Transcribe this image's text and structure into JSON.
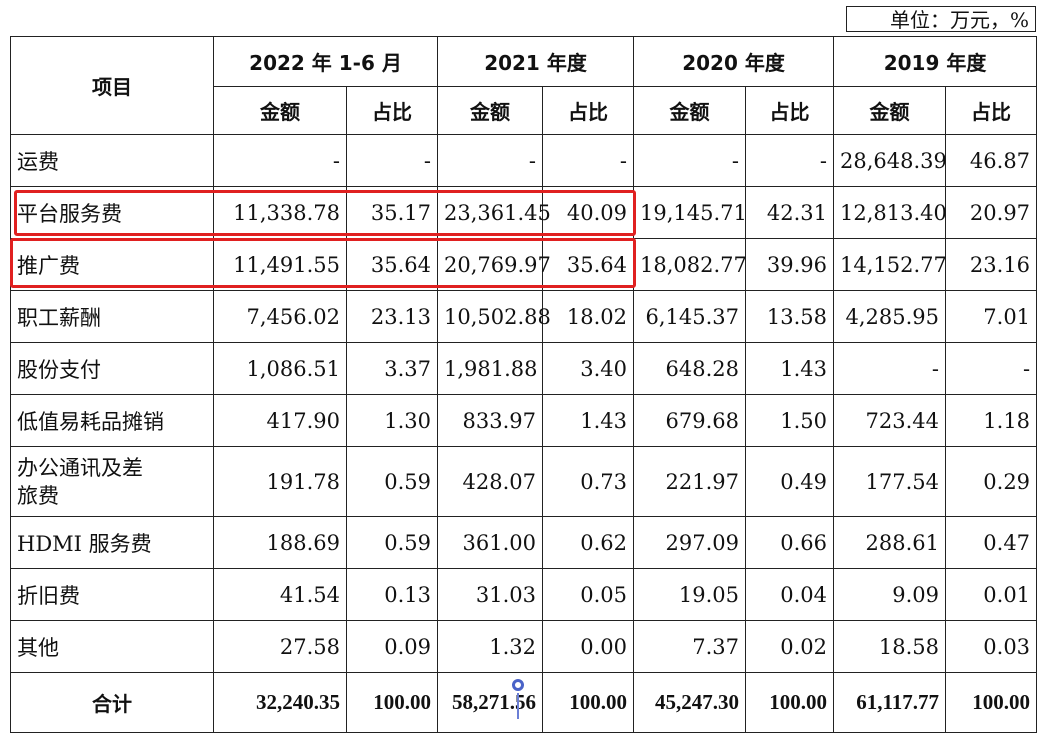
{
  "unit_label": "单位：万元，%",
  "header": {
    "item": "项目",
    "periods": [
      "2022 年 1-6 月",
      "2021 年度",
      "2020 年度",
      "2019 年度"
    ],
    "amount": "金额",
    "ratio": "占比"
  },
  "rows": [
    {
      "label": "运费",
      "v": [
        "-",
        "-",
        "-",
        "-",
        "-",
        "-",
        "28,648.39",
        "46.87"
      ]
    },
    {
      "label": "平台服务费",
      "v": [
        "11,338.78",
        "35.17",
        "23,361.45",
        "40.09",
        "19,145.71",
        "42.31",
        "12,813.40",
        "20.97"
      ]
    },
    {
      "label": "推广费",
      "v": [
        "11,491.55",
        "35.64",
        "20,769.97",
        "35.64",
        "18,082.77",
        "39.96",
        "14,152.77",
        "23.16"
      ]
    },
    {
      "label": "职工薪酬",
      "v": [
        "7,456.02",
        "23.13",
        "10,502.88",
        "18.02",
        "6,145.37",
        "13.58",
        "4,285.95",
        "7.01"
      ]
    },
    {
      "label": "股份支付",
      "v": [
        "1,086.51",
        "3.37",
        "1,981.88",
        "3.40",
        "648.28",
        "1.43",
        "-",
        "-"
      ]
    },
    {
      "label": "低值易耗品摊销",
      "v": [
        "417.90",
        "1.30",
        "833.97",
        "1.43",
        "679.68",
        "1.50",
        "723.44",
        "1.18"
      ]
    },
    {
      "label": "办公通讯及差旅费",
      "v": [
        "191.78",
        "0.59",
        "428.07",
        "0.73",
        "221.97",
        "0.49",
        "177.54",
        "0.29"
      ]
    },
    {
      "label": "HDMI 服务费",
      "v": [
        "188.69",
        "0.59",
        "361.00",
        "0.62",
        "297.09",
        "0.66",
        "288.61",
        "0.47"
      ]
    },
    {
      "label": "折旧费",
      "v": [
        "41.54",
        "0.13",
        "31.03",
        "0.05",
        "19.05",
        "0.04",
        "9.09",
        "0.01"
      ]
    },
    {
      "label": "其他",
      "v": [
        "27.58",
        "0.09",
        "1.32",
        "0.00",
        "7.37",
        "0.02",
        "18.58",
        "0.03"
      ]
    }
  ],
  "total": {
    "label": "合计",
    "v": [
      "32,240.35",
      "100.00",
      "58,271.56",
      "100.00",
      "45,247.30",
      "100.00",
      "61,117.77",
      "100.00"
    ]
  },
  "highlight_color": "#e02020"
}
